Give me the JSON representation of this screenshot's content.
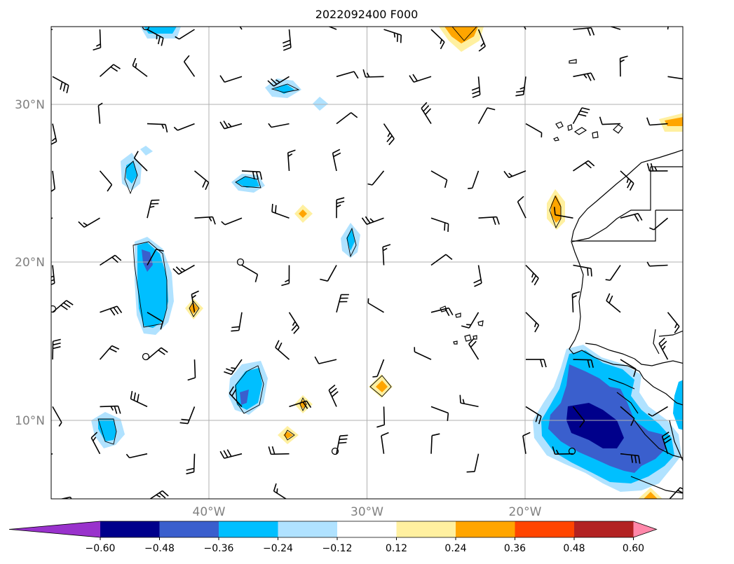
{
  "title": "2022092400 F000",
  "map": {
    "lat_labels": [
      {
        "text": "30°N",
        "lat": 30
      },
      {
        "text": "20°N",
        "lat": 20
      },
      {
        "text": "10°N",
        "lat": 10
      }
    ],
    "lon_labels": [
      {
        "text": "40°W",
        "lon": -40
      },
      {
        "text": "30°W",
        "lon": -30
      },
      {
        "text": "20°W",
        "lon": -20
      }
    ],
    "extent": {
      "lon_min": -50,
      "lon_max": -10,
      "lat_min": 5,
      "lat_max": 35
    }
  },
  "colorbar": {
    "colors": [
      "#9932cc",
      "#00008b",
      "#3a5fcd",
      "#00bfff",
      "#b0e2ff",
      "#ffffff",
      "#fff0a0",
      "#ffa500",
      "#ff4500",
      "#b22222",
      "#ff88aa"
    ],
    "tick_labels": [
      "−0.60",
      "−0.48",
      "−0.36",
      "−0.24",
      "−0.12",
      "0.12",
      "0.24",
      "0.36",
      "0.48",
      "0.60"
    ]
  }
}
